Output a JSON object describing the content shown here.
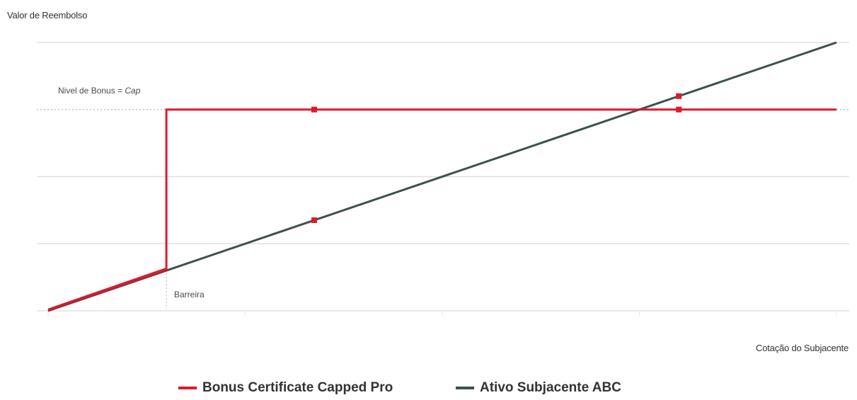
{
  "chart_data": {
    "type": "line",
    "title": "",
    "xlabel": "Cotação do Subjacente",
    "ylabel": "Valor de Reembolso",
    "x_ticks_labeled": false,
    "y_ticks_labeled": false,
    "xlim": [
      0,
      4
    ],
    "ylim": [
      0,
      4
    ],
    "grid": true,
    "legend_position": "bottom",
    "series": [
      {
        "name": "Bonus Certificate Capped Pro",
        "color": "#e0192a",
        "x": [
          0,
          0.6,
          0.6,
          4
        ],
        "y": [
          0,
          0.6,
          3,
          3
        ],
        "markers": [
          {
            "x": 1.35,
            "y": 3
          },
          {
            "x": 3.2,
            "y": 3
          }
        ]
      },
      {
        "name": "Ativo Subjacente ABC",
        "color": "#3d5050",
        "x": [
          0,
          4
        ],
        "y": [
          0,
          4
        ],
        "markers": [
          {
            "x": 1.35,
            "y": 1.35
          },
          {
            "x": 3.2,
            "y": 3.2
          }
        ]
      }
    ],
    "annotations": [
      {
        "text": "Nivel de Bonus = ",
        "italic": "Cap"
      },
      {
        "text": "Barreira"
      }
    ]
  }
}
